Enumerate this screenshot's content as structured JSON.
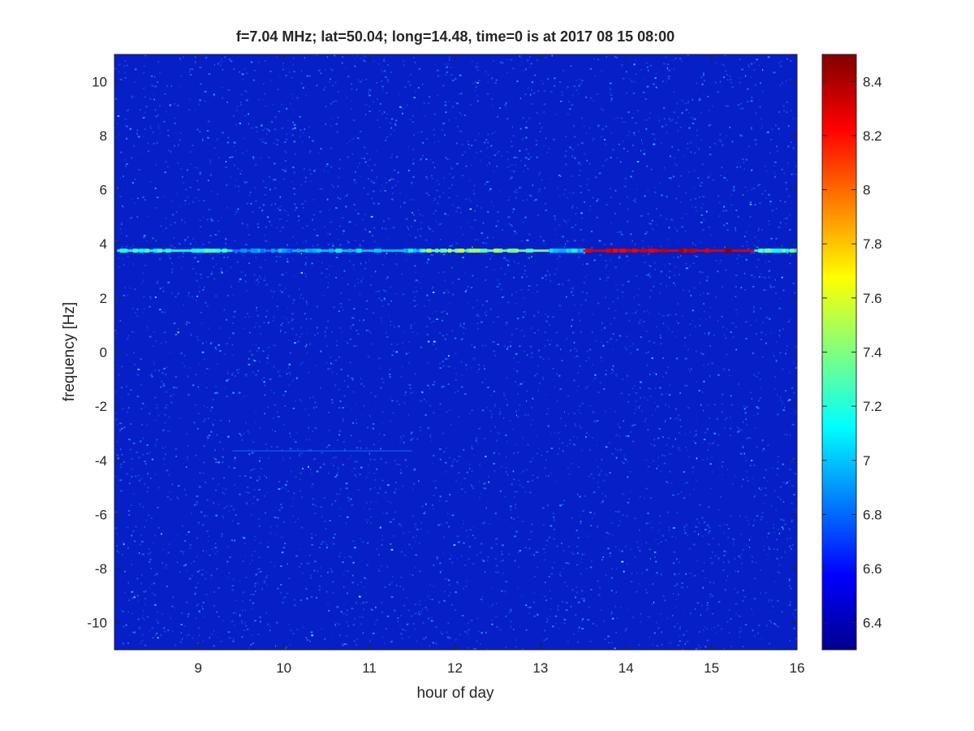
{
  "chart_data": {
    "type": "heatmap",
    "title": "f=7.04 MHz;  lat=50.04; long=14.48, time=0 is at 2017 08 15 08:00",
    "xlabel": "hour of day",
    "ylabel": "frequency [Hz]",
    "xlim": [
      8.02,
      16.0
    ],
    "ylim": [
      -11.0,
      11.0
    ],
    "x_ticks": [
      "9",
      "10",
      "11",
      "12",
      "13",
      "14",
      "15",
      "16"
    ],
    "y_ticks": [
      "10",
      "8",
      "6",
      "4",
      "2",
      "0",
      "-2",
      "-4",
      "-6",
      "-8",
      "-10"
    ],
    "colorbar": {
      "colormap": "jet",
      "range": [
        6.3,
        8.5
      ],
      "ticks": [
        "6.4",
        "6.6",
        "6.8",
        "7",
        "7.2",
        "7.4",
        "7.6",
        "7.8",
        "8",
        "8.2",
        "8.4"
      ]
    },
    "background_level": 6.35,
    "features": [
      {
        "kind": "carrier-line",
        "frequency_hz": 3.75,
        "segments": [
          {
            "x_start": 8.05,
            "x_end": 9.4,
            "level": 7.15
          },
          {
            "x_start": 9.4,
            "x_end": 10.1,
            "level": 6.85
          },
          {
            "x_start": 10.1,
            "x_end": 11.6,
            "level": 7.0
          },
          {
            "x_start": 11.6,
            "x_end": 13.1,
            "level": 7.35
          },
          {
            "x_start": 13.1,
            "x_end": 13.5,
            "level": 7.0
          },
          {
            "x_start": 13.5,
            "x_end": 15.5,
            "level": 8.3
          },
          {
            "x_start": 15.5,
            "x_end": 16.0,
            "level": 7.2
          }
        ]
      },
      {
        "kind": "faint-line",
        "frequency_hz": -3.65,
        "segments": [
          {
            "x_start": 9.4,
            "x_end": 11.5,
            "level": 6.85
          }
        ]
      }
    ]
  }
}
